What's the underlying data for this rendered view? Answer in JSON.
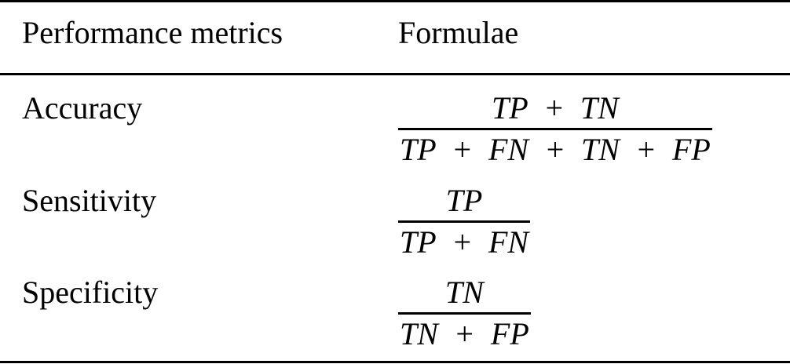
{
  "table": {
    "header": [
      "Performance metrics",
      "Formulae"
    ],
    "rows": [
      {
        "metric": "Accuracy",
        "numerator": "TP  +  TN",
        "denominator": "TP  +  FN  +  TN  +  FP"
      },
      {
        "metric": "Sensitivity",
        "numerator": "TP",
        "denominator": "TP  +  FN"
      },
      {
        "metric": "Specificity",
        "numerator": "TN",
        "denominator": "TN  +  FP"
      }
    ]
  }
}
